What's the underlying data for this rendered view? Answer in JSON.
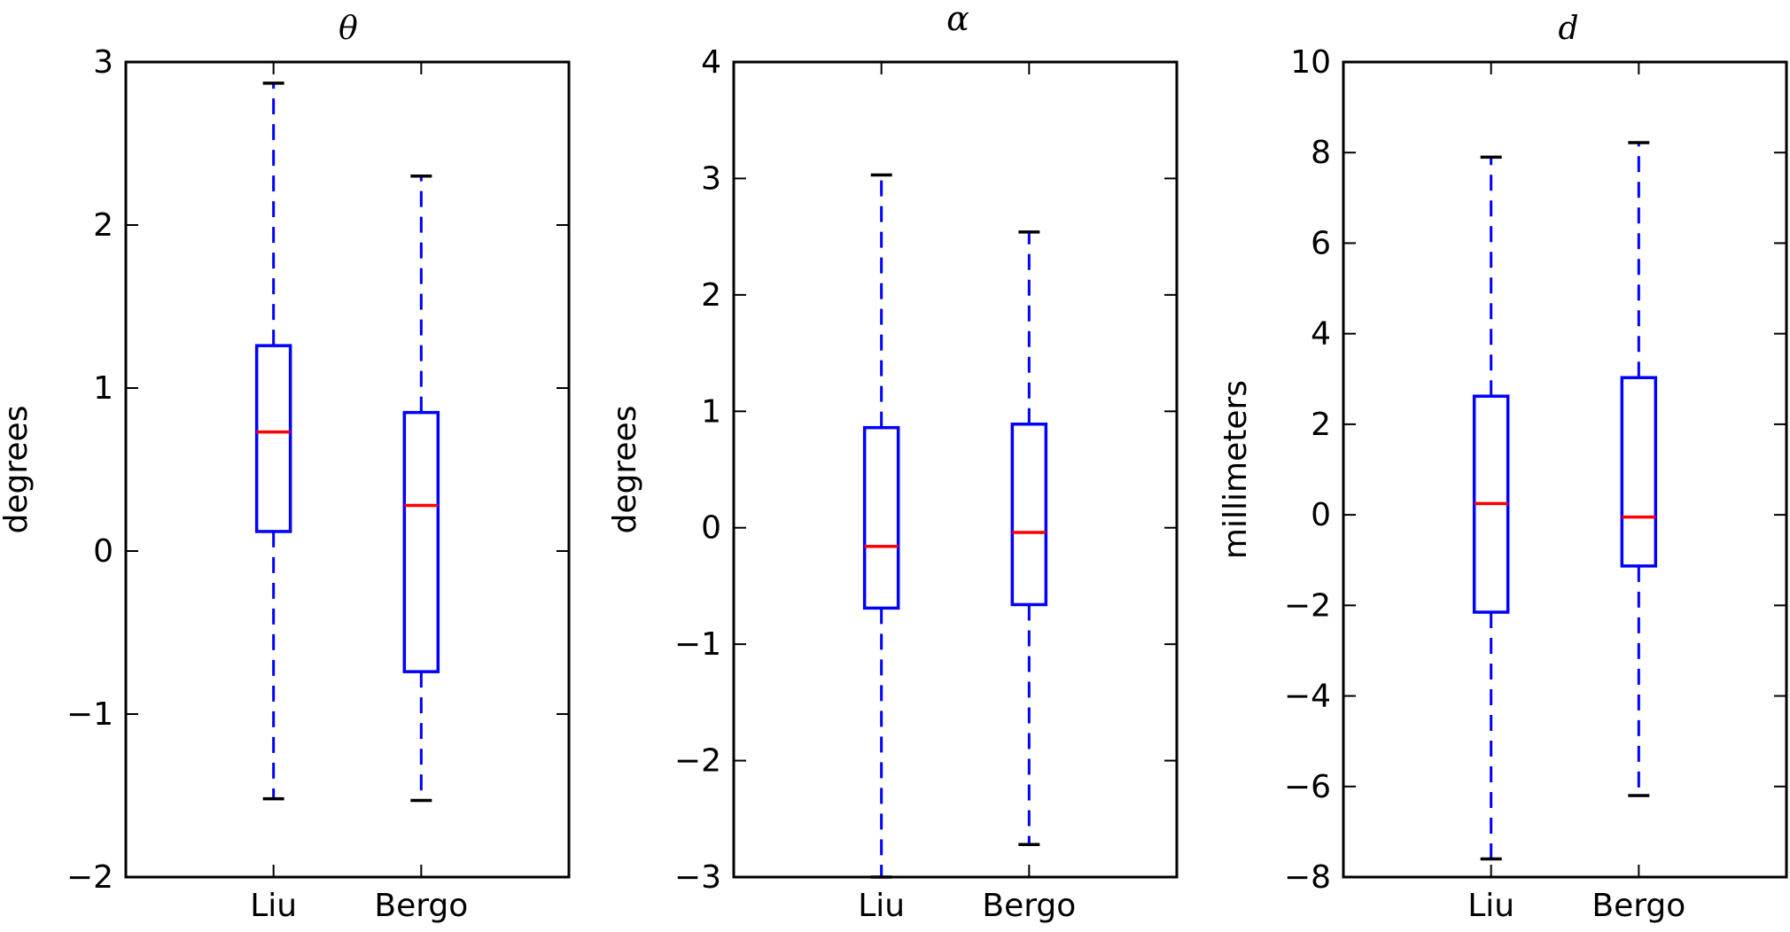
{
  "chart_data": [
    {
      "type": "box",
      "title": "θ",
      "xlabel": "",
      "ylabel": "degrees",
      "ylim": [
        -2,
        3
      ],
      "yticks": [
        -2,
        -1,
        0,
        1,
        2,
        3
      ],
      "ytick_labels": [
        "−2",
        "−1",
        "0",
        "1",
        "2",
        "3"
      ],
      "categories": [
        "Liu",
        "Bergo"
      ],
      "boxes": [
        {
          "label": "Liu",
          "whisker_low": -1.52,
          "q1": 0.12,
          "median": 0.73,
          "q3": 1.26,
          "whisker_high": 2.87
        },
        {
          "label": "Bergo",
          "whisker_low": -1.53,
          "q1": -0.74,
          "median": 0.28,
          "q3": 0.85,
          "whisker_high": 2.3
        }
      ]
    },
    {
      "type": "box",
      "title": "α",
      "xlabel": "",
      "ylabel": "degrees",
      "ylim": [
        -3,
        4
      ],
      "yticks": [
        -3,
        -2,
        -1,
        0,
        1,
        2,
        3,
        4
      ],
      "ytick_labels": [
        "−3",
        "−2",
        "−1",
        "0",
        "1",
        "2",
        "3",
        "4"
      ],
      "categories": [
        "Liu",
        "Bergo"
      ],
      "boxes": [
        {
          "label": "Liu",
          "whisker_low": -3.0,
          "q1": -0.69,
          "median": -0.16,
          "q3": 0.86,
          "whisker_high": 3.03
        },
        {
          "label": "Bergo",
          "whisker_low": -2.72,
          "q1": -0.66,
          "median": -0.04,
          "q3": 0.89,
          "whisker_high": 2.54
        }
      ]
    },
    {
      "type": "box",
      "title": "d",
      "xlabel": "",
      "ylabel": "millimeters",
      "ylim": [
        -8,
        10
      ],
      "yticks": [
        -8,
        -6,
        -4,
        -2,
        0,
        2,
        4,
        6,
        8,
        10
      ],
      "ytick_labels": [
        "−8",
        "−6",
        "−4",
        "−2",
        "0",
        "2",
        "4",
        "6",
        "8",
        "10"
      ],
      "categories": [
        "Liu",
        "Bergo"
      ],
      "boxes": [
        {
          "label": "Liu",
          "whisker_low": -7.6,
          "q1": -2.15,
          "median": 0.25,
          "q3": 2.62,
          "whisker_high": 7.9
        },
        {
          "label": "Bergo",
          "whisker_low": -6.2,
          "q1": -1.13,
          "median": -0.05,
          "q3": 3.03,
          "whisker_high": 8.22
        }
      ]
    }
  ],
  "colors": {
    "box": "#0000ff",
    "median": "#ff0000",
    "cap": "#000000",
    "axes": "#000000",
    "background": "#ffffff"
  }
}
